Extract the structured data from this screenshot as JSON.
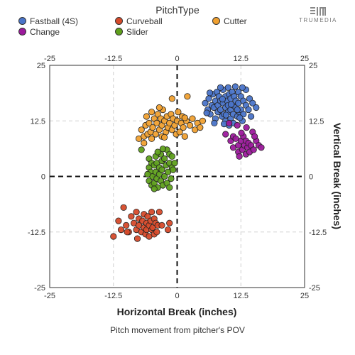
{
  "legend": {
    "title": "PitchType",
    "items": [
      {
        "label": "Fastball (4S)",
        "color": "#4a74c9"
      },
      {
        "label": "Curveball",
        "color": "#d64a2a"
      },
      {
        "label": "Cutter",
        "color": "#f0a030"
      },
      {
        "label": "Change",
        "color": "#9c1a9c"
      },
      {
        "label": "Slider",
        "color": "#5fa01c"
      }
    ]
  },
  "logo": {
    "text": "TRUMEDIA"
  },
  "footnote": "Pitch movement from pitcher's POV",
  "chart_data": {
    "type": "scatter",
    "title": "",
    "xlabel": "Horizontal Break (inches)",
    "ylabel": "Vertical Break (inches)",
    "xlim": [
      -25,
      25
    ],
    "ylim": [
      -25,
      25
    ],
    "xticks": [
      -25,
      -12.5,
      0,
      12.5,
      25
    ],
    "yticks": [
      -25,
      -12.5,
      0,
      12.5,
      25
    ],
    "xtick_labels": [
      "-25",
      "-12.5",
      "0",
      "12.5",
      "25"
    ],
    "ytick_labels": [
      "-25",
      "-12.5",
      "0",
      "12.5",
      "25"
    ],
    "grid": true,
    "zero_lines": "dashed",
    "series": [
      {
        "name": "Fastball (4S)",
        "color": "#4a74c9",
        "points": [
          [
            5.5,
            16.5
          ],
          [
            6,
            15
          ],
          [
            6.2,
            17.5
          ],
          [
            6.5,
            14
          ],
          [
            6.8,
            16
          ],
          [
            7,
            18.5
          ],
          [
            7.2,
            15.5
          ],
          [
            7.5,
            17
          ],
          [
            7.5,
            13
          ],
          [
            7.8,
            19
          ],
          [
            8,
            16
          ],
          [
            8,
            14.5
          ],
          [
            8.2,
            18
          ],
          [
            8.5,
            15
          ],
          [
            8.5,
            17
          ],
          [
            8.8,
            13.5
          ],
          [
            9,
            19.5
          ],
          [
            9,
            16.5
          ],
          [
            9.2,
            14
          ],
          [
            9.5,
            18
          ],
          [
            9.5,
            15.5
          ],
          [
            9.5,
            12.5
          ],
          [
            9.8,
            17
          ],
          [
            10,
            20
          ],
          [
            10,
            14.5
          ],
          [
            10,
            16
          ],
          [
            10.2,
            18.5
          ],
          [
            10.5,
            13
          ],
          [
            10.5,
            15
          ],
          [
            10.5,
            17.5
          ],
          [
            10.8,
            19
          ],
          [
            11,
            16
          ],
          [
            11,
            14
          ],
          [
            11,
            12
          ],
          [
            11.2,
            18
          ],
          [
            11.5,
            15.5
          ],
          [
            11.5,
            17
          ],
          [
            11.8,
            13.5
          ],
          [
            12,
            16.5
          ],
          [
            12,
            19
          ],
          [
            12.2,
            14.5
          ],
          [
            12.5,
            18
          ],
          [
            12.5,
            15
          ],
          [
            12.8,
            12.5
          ],
          [
            13,
            17
          ],
          [
            13,
            14
          ],
          [
            13.5,
            19.5
          ],
          [
            13.5,
            16
          ],
          [
            14,
            15
          ],
          [
            14.2,
            17.5
          ],
          [
            14.5,
            13.5
          ],
          [
            14.8,
            16.5
          ],
          [
            8.5,
            20
          ],
          [
            9.2,
            11.8
          ],
          [
            10.2,
            11.5
          ],
          [
            11.4,
            20.2
          ],
          [
            7.3,
            12
          ],
          [
            6.4,
            18.8
          ],
          [
            12.8,
            20
          ],
          [
            10.6,
            16.2
          ],
          [
            9.6,
            13.8
          ],
          [
            8.9,
            17.4
          ],
          [
            11.8,
            15
          ],
          [
            12.3,
            13.2
          ],
          [
            15.5,
            15.5
          ],
          [
            5.8,
            14.3
          ]
        ]
      },
      {
        "name": "Curveball",
        "color": "#d64a2a",
        "points": [
          [
            -12.5,
            -13.5
          ],
          [
            -11.5,
            -10
          ],
          [
            -11,
            -12
          ],
          [
            -10.5,
            -7
          ],
          [
            -10,
            -11
          ],
          [
            -9.5,
            -12.5
          ],
          [
            -9,
            -9
          ],
          [
            -8.5,
            -10.5
          ],
          [
            -8,
            -12
          ],
          [
            -8,
            -8
          ],
          [
            -7.5,
            -11
          ],
          [
            -7.5,
            -9.5
          ],
          [
            -7,
            -12.5
          ],
          [
            -6.8,
            -10
          ],
          [
            -6.5,
            -11.5
          ],
          [
            -6.5,
            -8.5
          ],
          [
            -6.2,
            -13
          ],
          [
            -6,
            -10.5
          ],
          [
            -6,
            -12
          ],
          [
            -5.8,
            -9
          ],
          [
            -5.5,
            -11
          ],
          [
            -5.5,
            -13.5
          ],
          [
            -5.2,
            -10
          ],
          [
            -5,
            -12
          ],
          [
            -5,
            -8
          ],
          [
            -4.8,
            -11.5
          ],
          [
            -4.5,
            -13
          ],
          [
            -4.5,
            -9.5
          ],
          [
            -4.2,
            -10.5
          ],
          [
            -4,
            -12.5
          ],
          [
            -3.8,
            -11
          ],
          [
            -3,
            -11
          ],
          [
            -1.8,
            -12
          ],
          [
            -1.5,
            -10.5
          ],
          [
            -3.5,
            -8
          ],
          [
            -7.8,
            -14
          ],
          [
            -9.8,
            -12.5
          ]
        ]
      },
      {
        "name": "Cutter",
        "color": "#f0a030",
        "points": [
          [
            -7.5,
            8.5
          ],
          [
            -7,
            10.5
          ],
          [
            -6.5,
            9
          ],
          [
            -6.2,
            11.5
          ],
          [
            -6,
            13.5
          ],
          [
            -5.8,
            9.5
          ],
          [
            -5.5,
            12
          ],
          [
            -5.2,
            10
          ],
          [
            -5,
            14.5
          ],
          [
            -5,
            8.5
          ],
          [
            -4.8,
            11
          ],
          [
            -4.5,
            13
          ],
          [
            -4.2,
            9.5
          ],
          [
            -4,
            12
          ],
          [
            -3.8,
            14
          ],
          [
            -3.5,
            10.5
          ],
          [
            -3.2,
            13
          ],
          [
            -3,
            9
          ],
          [
            -3,
            11.5
          ],
          [
            -2.8,
            15
          ],
          [
            -2.5,
            12.5
          ],
          [
            -2.2,
            10
          ],
          [
            -2,
            13.5
          ],
          [
            -1.8,
            11
          ],
          [
            -1.5,
            12
          ],
          [
            -1.2,
            14
          ],
          [
            -1,
            10.5
          ],
          [
            -0.8,
            13
          ],
          [
            -0.5,
            11.5
          ],
          [
            -0.2,
            9.5
          ],
          [
            0,
            12.5
          ],
          [
            0.2,
            14.5
          ],
          [
            0.5,
            10
          ],
          [
            0.8,
            12
          ],
          [
            1,
            13.5
          ],
          [
            1.2,
            11
          ],
          [
            1.5,
            9
          ],
          [
            1.8,
            12.5
          ],
          [
            2,
            18
          ],
          [
            2.5,
            11.5
          ],
          [
            3,
            13
          ],
          [
            3.5,
            10.5
          ],
          [
            4,
            12
          ],
          [
            4.5,
            11
          ],
          [
            5,
            12.5
          ],
          [
            -1,
            17.5
          ],
          [
            -3.5,
            15.5
          ],
          [
            -6.5,
            7.5
          ],
          [
            1.5,
            13.2
          ],
          [
            -2.5,
            8.8
          ]
        ]
      },
      {
        "name": "Change",
        "color": "#9c1a9c",
        "points": [
          [
            9.5,
            9.5
          ],
          [
            10.5,
            8
          ],
          [
            11,
            9
          ],
          [
            11,
            6.5
          ],
          [
            11.5,
            8.5
          ],
          [
            12,
            7
          ],
          [
            12,
            5.5
          ],
          [
            12.5,
            8
          ],
          [
            12.8,
            6
          ],
          [
            13,
            9
          ],
          [
            13.2,
            7
          ],
          [
            13.5,
            5
          ],
          [
            13.5,
            8
          ],
          [
            13.8,
            6.5
          ],
          [
            14,
            7.5
          ],
          [
            14.2,
            5.5
          ],
          [
            14.5,
            7
          ],
          [
            15,
            6
          ],
          [
            15.5,
            8
          ],
          [
            16,
            7
          ],
          [
            12.2,
            4.5
          ],
          [
            14.8,
            10
          ],
          [
            11.8,
            11.5
          ],
          [
            13.6,
            11
          ],
          [
            10.2,
            12
          ],
          [
            16.5,
            6.5
          ],
          [
            12.6,
            9.8
          ],
          [
            15.2,
            9
          ]
        ]
      },
      {
        "name": "Slider",
        "color": "#5fa01c",
        "points": [
          [
            -7,
            6
          ],
          [
            -5.5,
            4
          ],
          [
            -5.5,
            2
          ],
          [
            -5.5,
            -1
          ],
          [
            -5.2,
            1
          ],
          [
            -5,
            3
          ],
          [
            -5,
            -2
          ],
          [
            -4.8,
            0
          ],
          [
            -4.5,
            2.5
          ],
          [
            -4.5,
            -1.5
          ],
          [
            -4.2,
            4.5
          ],
          [
            -4.2,
            1
          ],
          [
            -4,
            -0.5
          ],
          [
            -4,
            3
          ],
          [
            -3.8,
            -2.5
          ],
          [
            -3.5,
            2
          ],
          [
            -3.5,
            0.5
          ],
          [
            -3.2,
            5
          ],
          [
            -3.2,
            -1
          ],
          [
            -3,
            3.5
          ],
          [
            -3,
            1.5
          ],
          [
            -2.8,
            -2
          ],
          [
            -2.5,
            4
          ],
          [
            -2.5,
            0
          ],
          [
            -2.2,
            2.5
          ],
          [
            -2,
            6
          ],
          [
            -2,
            -1.5
          ],
          [
            -1.8,
            1
          ],
          [
            -1.5,
            3
          ],
          [
            -1.5,
            5
          ],
          [
            -1.2,
            -0.5
          ],
          [
            -1,
            2
          ],
          [
            -1,
            4.5
          ],
          [
            -0.8,
            1.5
          ],
          [
            -0.5,
            3
          ],
          [
            -1.5,
            -2.5
          ],
          [
            -4.5,
            -2.8
          ],
          [
            -2.8,
            6.2
          ],
          [
            -3.8,
            5.5
          ],
          [
            -5.8,
            0.5
          ]
        ]
      }
    ]
  }
}
